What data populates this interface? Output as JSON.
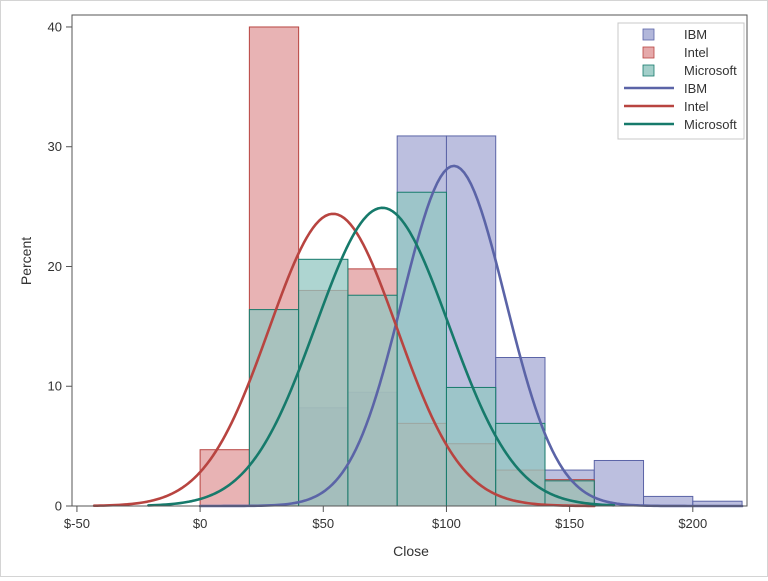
{
  "colors": {
    "ibm": "#5b64a7",
    "intel": "#b84440",
    "microsoft": "#167a6b",
    "ibm_fill": "#a5aad4",
    "intel_fill": "#e09a9b",
    "microsoft_fill": "#93c7c1",
    "axis": "#555555"
  },
  "chart_data": {
    "type": "bar",
    "xlabel": "Close",
    "ylabel": "Percent",
    "xlim": [
      -52,
      222
    ],
    "ylim": [
      0,
      41
    ],
    "x_ticks": [
      -50,
      0,
      50,
      100,
      150,
      200
    ],
    "x_tick_labels": [
      "$-50",
      "$0",
      "$50",
      "$100",
      "$150",
      "$200"
    ],
    "y_ticks": [
      0,
      10,
      20,
      30,
      40
    ],
    "y_tick_labels": [
      "0",
      "10",
      "20",
      "30",
      "40"
    ],
    "legend_position": "top-right",
    "legend": [
      {
        "label": "IBM",
        "kind": "bar",
        "series": "ibm"
      },
      {
        "label": "Intel",
        "kind": "bar",
        "series": "intel"
      },
      {
        "label": "Microsoft",
        "kind": "bar",
        "series": "microsoft"
      },
      {
        "label": "IBM",
        "kind": "line",
        "series": "ibm"
      },
      {
        "label": "Intel",
        "kind": "line",
        "series": "intel"
      },
      {
        "label": "Microsoft",
        "kind": "line",
        "series": "microsoft"
      }
    ],
    "bin_width": 20,
    "histograms": [
      {
        "key": "ibm",
        "name": "IBM",
        "bins": [
          {
            "start": 40,
            "value": 8.2
          },
          {
            "start": 60,
            "value": 9.5
          },
          {
            "start": 80,
            "value": 30.9
          },
          {
            "start": 100,
            "value": 30.9
          },
          {
            "start": 120,
            "value": 12.4
          },
          {
            "start": 140,
            "value": 3.0
          },
          {
            "start": 160,
            "value": 3.8
          },
          {
            "start": 180,
            "value": 0.8
          },
          {
            "start": 200,
            "value": 0.4
          }
        ]
      },
      {
        "key": "intel",
        "name": "Intel",
        "bins": [
          {
            "start": 0,
            "value": 4.7
          },
          {
            "start": 20,
            "value": 40.0
          },
          {
            "start": 40,
            "value": 18.0
          },
          {
            "start": 60,
            "value": 19.8
          },
          {
            "start": 80,
            "value": 6.9
          },
          {
            "start": 100,
            "value": 5.2
          },
          {
            "start": 120,
            "value": 3.0
          },
          {
            "start": 140,
            "value": 2.2
          }
        ]
      },
      {
        "key": "microsoft",
        "name": "Microsoft",
        "bins": [
          {
            "start": 20,
            "value": 16.4
          },
          {
            "start": 40,
            "value": 20.6
          },
          {
            "start": 60,
            "value": 17.6
          },
          {
            "start": 80,
            "value": 26.2
          },
          {
            "start": 100,
            "value": 9.9
          },
          {
            "start": 120,
            "value": 6.9
          },
          {
            "start": 140,
            "value": 2.1
          }
        ]
      }
    ],
    "curves": [
      {
        "key": "ibm",
        "name": "IBM",
        "mean": 103,
        "peak": 28.4,
        "sd": 21,
        "x_range": [
          0,
          220
        ]
      },
      {
        "key": "intel",
        "name": "Intel",
        "mean": 54,
        "peak": 24.4,
        "sd": 26,
        "x_range": [
          -43,
          160
        ]
      },
      {
        "key": "microsoft",
        "name": "Microsoft",
        "mean": 74,
        "peak": 24.9,
        "sd": 27,
        "x_range": [
          -21,
          168
        ]
      }
    ]
  }
}
